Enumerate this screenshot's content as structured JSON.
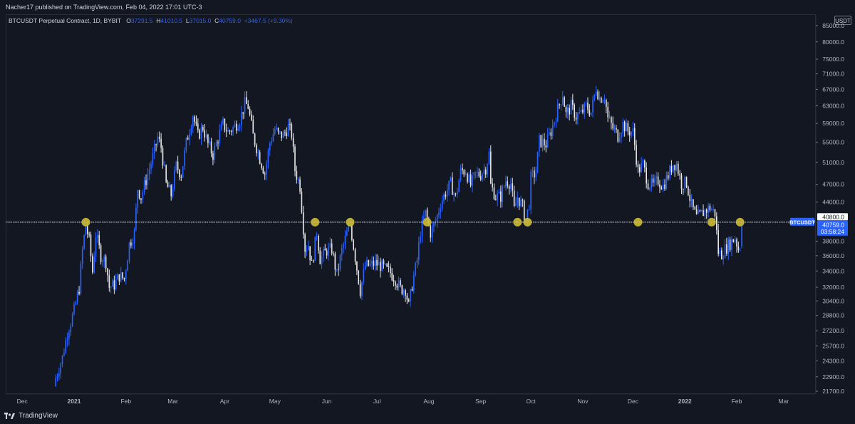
{
  "publisher_line": "Nacher17 published on TradingView.com, Feb 04, 2022 17:01 UTC-3",
  "legend": {
    "symbol": "BTCUSDT Perpetual Contract, 1D, BYBIT",
    "open_label": "O",
    "open": "37291.5",
    "high_label": "H",
    "high": "41010.5",
    "low_label": "L",
    "low": "37015.0",
    "close_label": "C",
    "close": "40759.0",
    "change": "+3467.5 (+9.30%)"
  },
  "unit_badge": "USDT",
  "brand": "TradingView",
  "colors": {
    "background": "#131722",
    "up": "#2962ff",
    "down": "#e6e6e6",
    "level": "#ffffff",
    "marker": "#c9b93a",
    "price_tag": "#2962ff"
  },
  "chart_data": {
    "type": "candlestick",
    "symbol": "BTCUSDT",
    "interval": "1D",
    "y_scale": "log",
    "y_ticks": [
      "21700.0",
      "22900.0",
      "24300.0",
      "25700.0",
      "27200.0",
      "28800.0",
      "30400.0",
      "32000.0",
      "34000.0",
      "36000.0",
      "38000.0",
      "40800.0",
      "44000.0",
      "47000.0",
      "51000.0",
      "55000.0",
      "59000.0",
      "63000.0",
      "67000.0",
      "71000.0",
      "75000.0",
      "80000.0",
      "85000.0"
    ],
    "x_ticks": [
      {
        "label": "Dec",
        "date": "2020-12-01"
      },
      {
        "label": "2021",
        "date": "2021-01-01"
      },
      {
        "label": "Feb",
        "date": "2021-02-01"
      },
      {
        "label": "Mar",
        "date": "2021-03-01"
      },
      {
        "label": "Apr",
        "date": "2021-04-01"
      },
      {
        "label": "May",
        "date": "2021-05-01"
      },
      {
        "label": "Jun",
        "date": "2021-06-01"
      },
      {
        "label": "Jul",
        "date": "2021-07-01"
      },
      {
        "label": "Aug",
        "date": "2021-08-01"
      },
      {
        "label": "Sep",
        "date": "2021-09-01"
      },
      {
        "label": "Oct",
        "date": "2021-10-01"
      },
      {
        "label": "Nov",
        "date": "2021-11-01"
      },
      {
        "label": "Dec",
        "date": "2021-12-01"
      },
      {
        "label": "2022",
        "date": "2022-01-01"
      },
      {
        "label": "Feb",
        "date": "2022-02-01"
      },
      {
        "label": "Mar",
        "date": "2022-03-01"
      }
    ],
    "close_series": [
      {
        "date": "2020-12-21",
        "close": 22800
      },
      {
        "date": "2020-12-25",
        "close": 24600
      },
      {
        "date": "2020-12-28",
        "close": 27000
      },
      {
        "date": "2021-01-01",
        "close": 29300
      },
      {
        "date": "2021-01-04",
        "close": 31900
      },
      {
        "date": "2021-01-06",
        "close": 36800
      },
      {
        "date": "2021-01-08",
        "close": 40400
      },
      {
        "date": "2021-01-10",
        "close": 38100
      },
      {
        "date": "2021-01-12",
        "close": 33900
      },
      {
        "date": "2021-01-14",
        "close": 39000
      },
      {
        "date": "2021-01-17",
        "close": 36000
      },
      {
        "date": "2021-01-20",
        "close": 35200
      },
      {
        "date": "2021-01-22",
        "close": 32000
      },
      {
        "date": "2021-01-25",
        "close": 32300
      },
      {
        "date": "2021-01-28",
        "close": 33400
      },
      {
        "date": "2021-01-31",
        "close": 33000
      },
      {
        "date": "2021-02-03",
        "close": 37600
      },
      {
        "date": "2021-02-06",
        "close": 39200
      },
      {
        "date": "2021-02-08",
        "close": 46300
      },
      {
        "date": "2021-02-10",
        "close": 44800
      },
      {
        "date": "2021-02-14",
        "close": 48800
      },
      {
        "date": "2021-02-17",
        "close": 52000
      },
      {
        "date": "2021-02-20",
        "close": 56000
      },
      {
        "date": "2021-02-22",
        "close": 54000
      },
      {
        "date": "2021-02-25",
        "close": 47000
      },
      {
        "date": "2021-02-28",
        "close": 45200
      },
      {
        "date": "2021-03-03",
        "close": 50300
      },
      {
        "date": "2021-03-06",
        "close": 48800
      },
      {
        "date": "2021-03-09",
        "close": 54800
      },
      {
        "date": "2021-03-13",
        "close": 61000
      },
      {
        "date": "2021-03-16",
        "close": 56300
      },
      {
        "date": "2021-03-19",
        "close": 58200
      },
      {
        "date": "2021-03-22",
        "close": 54600
      },
      {
        "date": "2021-03-25",
        "close": 52500
      },
      {
        "date": "2021-03-28",
        "close": 55800
      },
      {
        "date": "2021-03-31",
        "close": 58900
      },
      {
        "date": "2021-04-03",
        "close": 57100
      },
      {
        "date": "2021-04-06",
        "close": 58000
      },
      {
        "date": "2021-04-10",
        "close": 59800
      },
      {
        "date": "2021-04-13",
        "close": 63500
      },
      {
        "date": "2021-04-15",
        "close": 62900
      },
      {
        "date": "2021-04-18",
        "close": 56300
      },
      {
        "date": "2021-04-22",
        "close": 51800
      },
      {
        "date": "2021-04-25",
        "close": 49000
      },
      {
        "date": "2021-04-28",
        "close": 54900
      },
      {
        "date": "2021-05-01",
        "close": 57800
      },
      {
        "date": "2021-05-03",
        "close": 56600
      },
      {
        "date": "2021-05-06",
        "close": 56400
      },
      {
        "date": "2021-05-09",
        "close": 58300
      },
      {
        "date": "2021-05-11",
        "close": 56700
      },
      {
        "date": "2021-05-13",
        "close": 49600
      },
      {
        "date": "2021-05-16",
        "close": 46700
      },
      {
        "date": "2021-05-19",
        "close": 37000
      },
      {
        "date": "2021-05-21",
        "close": 37500
      },
      {
        "date": "2021-05-23",
        "close": 34700
      },
      {
        "date": "2021-05-26",
        "close": 39300
      },
      {
        "date": "2021-05-28",
        "close": 35600
      },
      {
        "date": "2021-06-01",
        "close": 36700
      },
      {
        "date": "2021-06-04",
        "close": 36900
      },
      {
        "date": "2021-06-07",
        "close": 33500
      },
      {
        "date": "2021-06-10",
        "close": 36700
      },
      {
        "date": "2021-06-13",
        "close": 39100
      },
      {
        "date": "2021-06-15",
        "close": 40500
      },
      {
        "date": "2021-06-18",
        "close": 35800
      },
      {
        "date": "2021-06-21",
        "close": 31600
      },
      {
        "date": "2021-06-24",
        "close": 34700
      },
      {
        "date": "2021-06-27",
        "close": 34700
      },
      {
        "date": "2021-06-30",
        "close": 35000
      },
      {
        "date": "2021-07-03",
        "close": 34700
      },
      {
        "date": "2021-07-06",
        "close": 34200
      },
      {
        "date": "2021-07-09",
        "close": 33800
      },
      {
        "date": "2021-07-12",
        "close": 33000
      },
      {
        "date": "2021-07-15",
        "close": 31800
      },
      {
        "date": "2021-07-18",
        "close": 31800
      },
      {
        "date": "2021-07-20",
        "close": 29800
      },
      {
        "date": "2021-07-22",
        "close": 32300
      },
      {
        "date": "2021-07-25",
        "close": 35400
      },
      {
        "date": "2021-07-27",
        "close": 39500
      },
      {
        "date": "2021-07-30",
        "close": 42200
      },
      {
        "date": "2021-08-02",
        "close": 39200
      },
      {
        "date": "2021-08-05",
        "close": 40800
      },
      {
        "date": "2021-08-08",
        "close": 43800
      },
      {
        "date": "2021-08-11",
        "close": 45600
      },
      {
        "date": "2021-08-14",
        "close": 47100
      },
      {
        "date": "2021-08-17",
        "close": 44700
      },
      {
        "date": "2021-08-20",
        "close": 49300
      },
      {
        "date": "2021-08-23",
        "close": 49500
      },
      {
        "date": "2021-08-26",
        "close": 46800
      },
      {
        "date": "2021-08-29",
        "close": 48800
      },
      {
        "date": "2021-09-01",
        "close": 48800
      },
      {
        "date": "2021-09-04",
        "close": 50000
      },
      {
        "date": "2021-09-06",
        "close": 52700
      },
      {
        "date": "2021-09-07",
        "close": 46800
      },
      {
        "date": "2021-09-10",
        "close": 44900
      },
      {
        "date": "2021-09-13",
        "close": 44900
      },
      {
        "date": "2021-09-16",
        "close": 47700
      },
      {
        "date": "2021-09-19",
        "close": 47200
      },
      {
        "date": "2021-09-21",
        "close": 42700
      },
      {
        "date": "2021-09-23",
        "close": 44800
      },
      {
        "date": "2021-09-26",
        "close": 43200
      },
      {
        "date": "2021-09-28",
        "close": 41000
      },
      {
        "date": "2021-09-30",
        "close": 43800
      },
      {
        "date": "2021-10-01",
        "close": 48100
      },
      {
        "date": "2021-10-04",
        "close": 49200
      },
      {
        "date": "2021-10-06",
        "close": 55300
      },
      {
        "date": "2021-10-10",
        "close": 54600
      },
      {
        "date": "2021-10-13",
        "close": 57300
      },
      {
        "date": "2021-10-16",
        "close": 60900
      },
      {
        "date": "2021-10-20",
        "close": 65900
      },
      {
        "date": "2021-10-22",
        "close": 61000
      },
      {
        "date": "2021-10-25",
        "close": 62900
      },
      {
        "date": "2021-10-28",
        "close": 60600
      },
      {
        "date": "2021-10-31",
        "close": 61300
      },
      {
        "date": "2021-11-03",
        "close": 62900
      },
      {
        "date": "2021-11-06",
        "close": 61500
      },
      {
        "date": "2021-11-09",
        "close": 67500
      },
      {
        "date": "2021-11-11",
        "close": 64900
      },
      {
        "date": "2021-11-14",
        "close": 65400
      },
      {
        "date": "2021-11-16",
        "close": 60100
      },
      {
        "date": "2021-11-19",
        "close": 58000
      },
      {
        "date": "2021-11-22",
        "close": 56300
      },
      {
        "date": "2021-11-25",
        "close": 58900
      },
      {
        "date": "2021-11-28",
        "close": 57300
      },
      {
        "date": "2021-12-01",
        "close": 57200
      },
      {
        "date": "2021-12-04",
        "close": 49400
      },
      {
        "date": "2021-12-07",
        "close": 50600
      },
      {
        "date": "2021-12-10",
        "close": 47200
      },
      {
        "date": "2021-12-13",
        "close": 46700
      },
      {
        "date": "2021-12-16",
        "close": 47700
      },
      {
        "date": "2021-12-19",
        "close": 46700
      },
      {
        "date": "2021-12-22",
        "close": 48600
      },
      {
        "date": "2021-12-25",
        "close": 50800
      },
      {
        "date": "2021-12-27",
        "close": 50700
      },
      {
        "date": "2021-12-30",
        "close": 47100
      },
      {
        "date": "2022-01-02",
        "close": 47300
      },
      {
        "date": "2022-01-05",
        "close": 43400
      },
      {
        "date": "2022-01-08",
        "close": 41500
      },
      {
        "date": "2022-01-10",
        "close": 41800
      },
      {
        "date": "2022-01-13",
        "close": 42600
      },
      {
        "date": "2022-01-16",
        "close": 43100
      },
      {
        "date": "2022-01-19",
        "close": 42200
      },
      {
        "date": "2022-01-21",
        "close": 36500
      },
      {
        "date": "2022-01-23",
        "close": 36200
      },
      {
        "date": "2022-01-25",
        "close": 36900
      },
      {
        "date": "2022-01-28",
        "close": 37700
      },
      {
        "date": "2022-01-31",
        "close": 38500
      },
      {
        "date": "2022-02-02",
        "close": 36900
      },
      {
        "date": "2022-02-03",
        "close": 37300
      },
      {
        "date": "2022-02-04",
        "close": 40759
      }
    ],
    "level": {
      "price": 40800.0,
      "label": "40800.0"
    },
    "price_tag": {
      "symbol": "BTCUSDT",
      "price": "40759.0",
      "countdown": "03:58:24"
    },
    "markers": [
      {
        "date": "2021-01-08",
        "price": 40800
      },
      {
        "date": "2021-05-25",
        "price": 40800
      },
      {
        "date": "2021-06-15",
        "price": 40800
      },
      {
        "date": "2021-07-31",
        "price": 40800
      },
      {
        "date": "2021-09-23",
        "price": 40800
      },
      {
        "date": "2021-09-29",
        "price": 40800
      },
      {
        "date": "2021-12-04",
        "price": 40800
      },
      {
        "date": "2022-01-17",
        "price": 40800
      },
      {
        "date": "2022-02-03",
        "price": 40800
      }
    ],
    "grid": false
  }
}
